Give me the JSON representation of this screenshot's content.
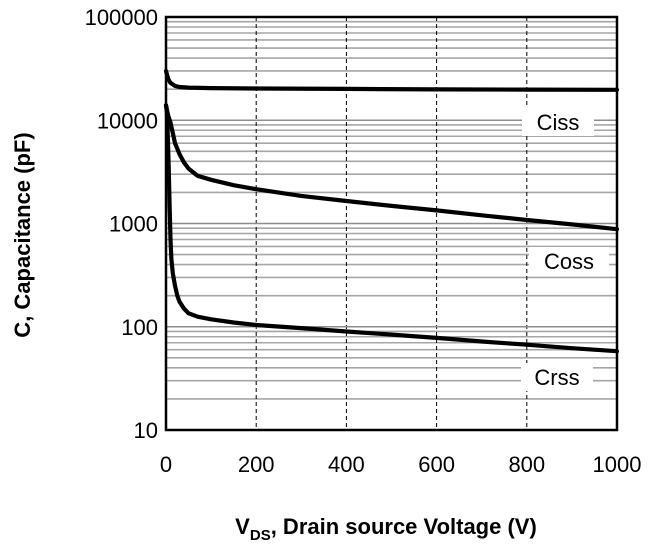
{
  "chart_data": {
    "type": "line",
    "title": "",
    "xlabel": {
      "main": "V",
      "sub": "DS",
      "rest": ", Drain source  Voltage (V)"
    },
    "ylabel": "C, Capacitance (pF)",
    "xlim": [
      0,
      1000
    ],
    "ylim": [
      10,
      100000
    ],
    "yscale": "log",
    "x_ticks": [
      0,
      200,
      400,
      600,
      800,
      1000
    ],
    "x_tick_labels": [
      "0",
      "200",
      "400",
      "600",
      "800",
      "1000"
    ],
    "y_ticks": [
      10,
      100,
      1000,
      10000,
      100000
    ],
    "y_tick_labels": [
      "10",
      "100",
      "1000",
      "10000",
      "100000"
    ],
    "series": [
      {
        "name": "Ciss",
        "x": [
          0,
          5,
          10,
          20,
          30,
          50,
          100,
          200,
          400,
          600,
          800,
          1000
        ],
        "values": [
          30000,
          25000,
          23000,
          21500,
          21000,
          20700,
          20500,
          20300,
          20100,
          19900,
          19800,
          19700
        ]
      },
      {
        "name": "Coss",
        "x": [
          0,
          3,
          5,
          10,
          15,
          20,
          30,
          40,
          50,
          70,
          100,
          150,
          200,
          300,
          400,
          500,
          600,
          700,
          800,
          900,
          1000
        ],
        "values": [
          14000,
          12000,
          11000,
          9500,
          7500,
          6000,
          4700,
          3900,
          3400,
          2900,
          2650,
          2350,
          2150,
          1850,
          1650,
          1480,
          1340,
          1200,
          1080,
          980,
          880
        ]
      },
      {
        "name": "Crss",
        "x": [
          0,
          2,
          4,
          6,
          8,
          10,
          12,
          15,
          20,
          25,
          30,
          40,
          50,
          70,
          100,
          150,
          200,
          300,
          400,
          500,
          600,
          700,
          800,
          900,
          1000
        ],
        "values": [
          14000,
          12000,
          7000,
          3500,
          1500,
          700,
          450,
          330,
          250,
          200,
          175,
          150,
          135,
          125,
          118,
          110,
          104,
          97,
          90,
          84,
          78,
          72,
          67,
          62,
          58
        ]
      }
    ]
  }
}
